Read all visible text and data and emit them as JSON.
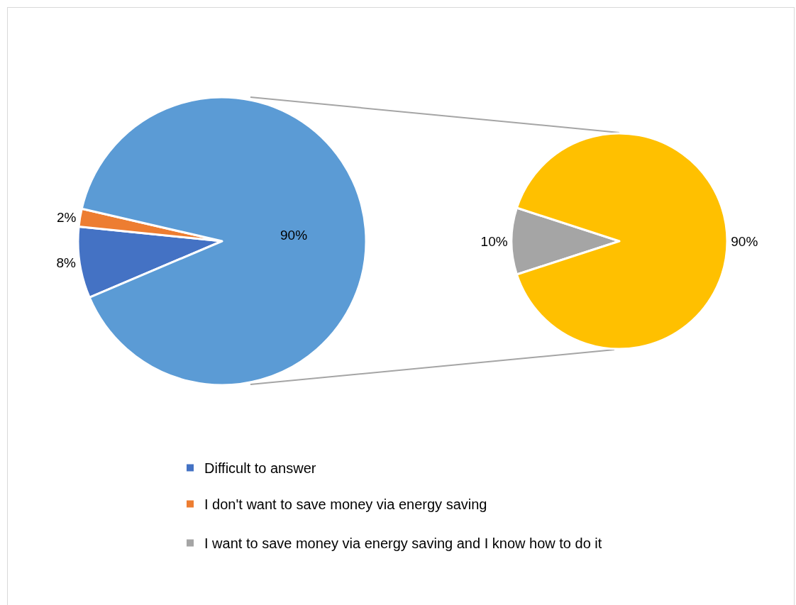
{
  "chart_data": [
    {
      "type": "pie",
      "categories": [
        "Difficult to answer",
        "I don't want to save money via energy saving",
        null
      ],
      "values": [
        8,
        2,
        90
      ],
      "colors": [
        "#4472c4",
        "#ed7d31",
        "#5b9bd5"
      ],
      "value_labels": [
        "8%",
        "2%",
        "90%"
      ],
      "legend": "bottom"
    },
    {
      "type": "pie",
      "categories": [
        "I want to save money via energy saving and I know how to do it",
        null
      ],
      "values": [
        10,
        90
      ],
      "colors": [
        "#a5a5a5",
        "#ffc000"
      ],
      "value_labels": [
        "10%",
        "90%"
      ],
      "legend": "bottom"
    }
  ]
}
